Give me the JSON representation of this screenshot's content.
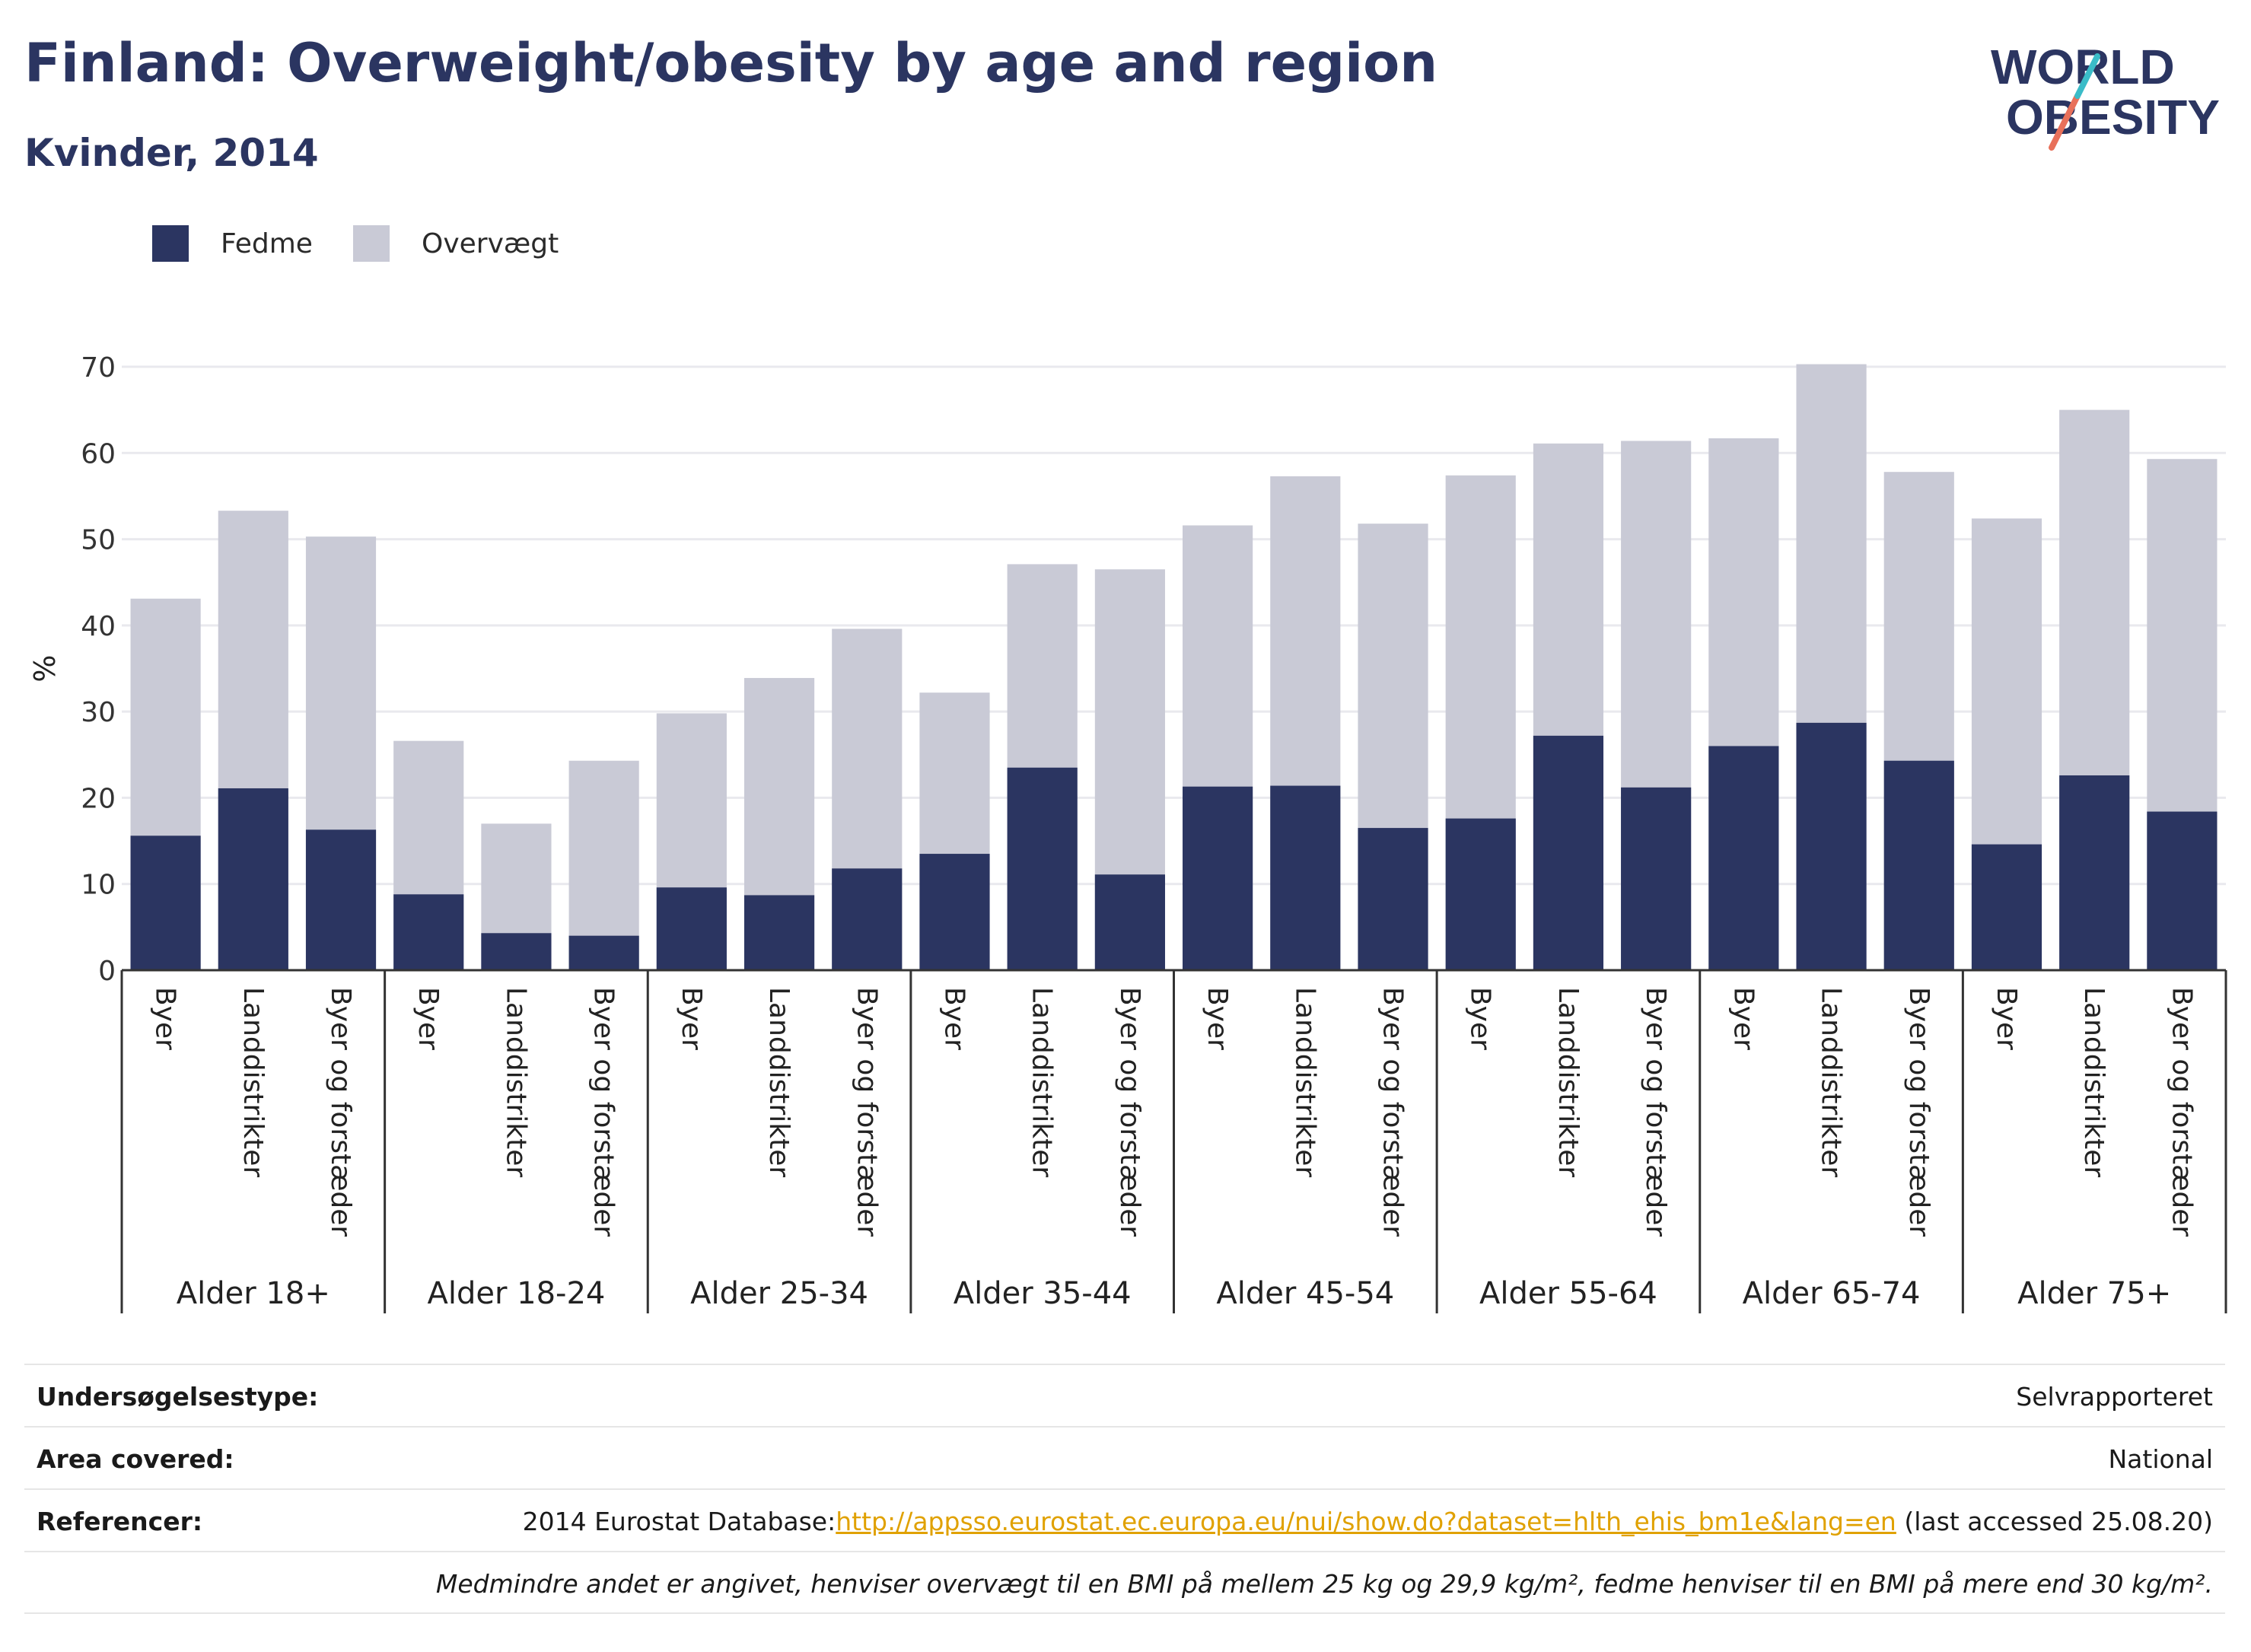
{
  "header": {
    "title": "Finland: Overweight/obesity by age and region",
    "subtitle": "Kvinder, 2014",
    "logo_line1": "WORLD",
    "logo_line2": "OBESITY"
  },
  "colors": {
    "fedme": "#2b3561",
    "overvaegt": "#c9cad6",
    "grid": "#e9e9ee",
    "axis": "#333333",
    "link": "#e0a100"
  },
  "chart_data": {
    "type": "bar",
    "stacked": true,
    "ylabel": "%",
    "ylim": [
      0,
      70
    ],
    "yticks": [
      0,
      10,
      20,
      30,
      40,
      50,
      60,
      70
    ],
    "legend": [
      "Fedme",
      "Overvægt"
    ],
    "legend_placement": "top-left",
    "groups": [
      "Alder 18+",
      "Alder 18-24",
      "Alder 25-34",
      "Alder 35-44",
      "Alder 45-54",
      "Alder 55-64",
      "Alder 65-74",
      "Alder 75+"
    ],
    "regions": [
      "Byer",
      "Landdistrikter",
      "Byer og forstæder"
    ],
    "series": [
      {
        "name": "Fedme",
        "values": [
          [
            15.6,
            21.1,
            16.3
          ],
          [
            8.8,
            4.3,
            4.0
          ],
          [
            9.6,
            8.7,
            11.8
          ],
          [
            13.5,
            23.5,
            11.1
          ],
          [
            21.3,
            21.4,
            16.5
          ],
          [
            17.6,
            27.2,
            21.2
          ],
          [
            26.0,
            28.7,
            24.3
          ],
          [
            14.6,
            22.6,
            18.4
          ]
        ]
      },
      {
        "name": "Overvægt",
        "values": [
          [
            43.1,
            53.3,
            50.3
          ],
          [
            26.6,
            17.0,
            24.3
          ],
          [
            29.8,
            33.9,
            39.6
          ],
          [
            32.2,
            47.1,
            46.5
          ],
          [
            51.6,
            57.3,
            51.8
          ],
          [
            57.4,
            61.1,
            61.4
          ],
          [
            61.7,
            70.3,
            57.8
          ],
          [
            52.4,
            65.0,
            59.3
          ]
        ]
      }
    ]
  },
  "info": {
    "survey_type_label": "Undersøgelsestype:",
    "survey_type_value": "Selvrapporteret",
    "area_label": "Area covered:",
    "area_value": "National",
    "references_label": "Referencer:",
    "references_prefix": "2014 Eurostat Database:",
    "references_link": "http://appsso.eurostat.ec.europa.eu/nui/show.do?dataset=hlth_ehis_bm1e&lang=en",
    "references_suffix": " (last accessed 25.08.20)",
    "note": "Medmindre andet er angivet, henviser overvægt til en BMI på mellem 25 kg og 29,9 kg/m², fedme henviser til en BMI på mere end 30 kg/m²."
  }
}
